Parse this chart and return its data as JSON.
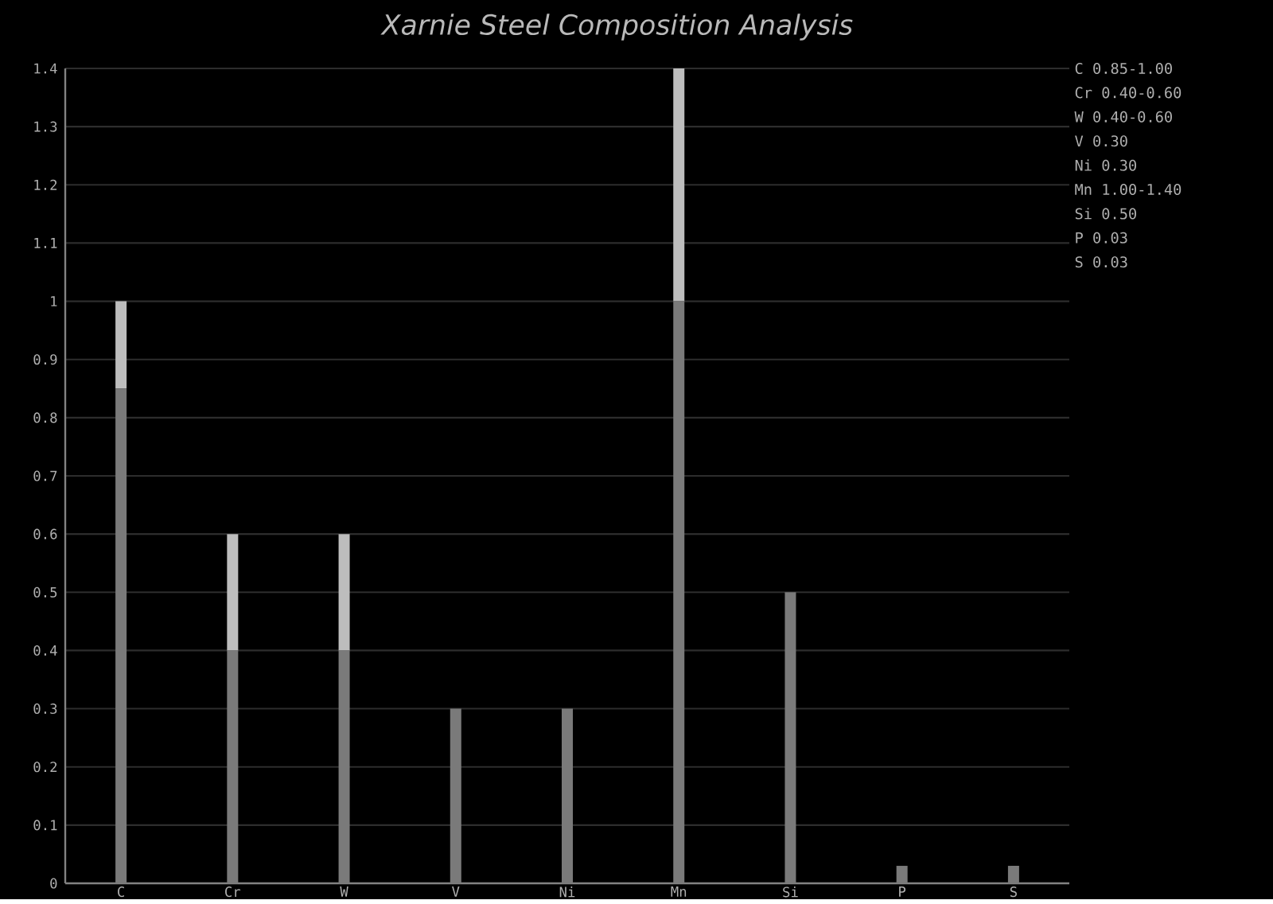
{
  "chart_data": {
    "type": "bar",
    "title": "Xarnie Steel Composition Analysis",
    "categories": [
      "C",
      "Cr",
      "W",
      "V",
      "Ni",
      "Mn",
      "Si",
      "P",
      "S"
    ],
    "stacked": true,
    "series": [
      {
        "color": "#7a7a7a",
        "values": [
          0.85,
          0.4,
          0.4,
          0.3,
          0.3,
          1.0,
          0.5,
          0.03,
          0.03
        ]
      },
      {
        "color": "#bdbdbd",
        "values": [
          0.15,
          0.2,
          0.2,
          null,
          null,
          0.4,
          null,
          null,
          null
        ]
      }
    ],
    "ylim": [
      0,
      1.4
    ],
    "yticks": [
      0,
      0.1,
      0.2,
      0.3,
      0.4,
      0.5,
      0.6,
      0.7,
      0.8,
      0.9,
      1,
      1.1,
      1.2,
      1.3,
      1.4
    ],
    "grid": "y",
    "annotations": [
      "C  0.85-1.00",
      "Cr 0.40-0.60",
      "W  0.40-0.60",
      "V  0.30",
      "Ni 0.30",
      "Mn 1.00-1.40",
      "Si 0.50",
      "P  0.03",
      "S  0.03"
    ]
  }
}
